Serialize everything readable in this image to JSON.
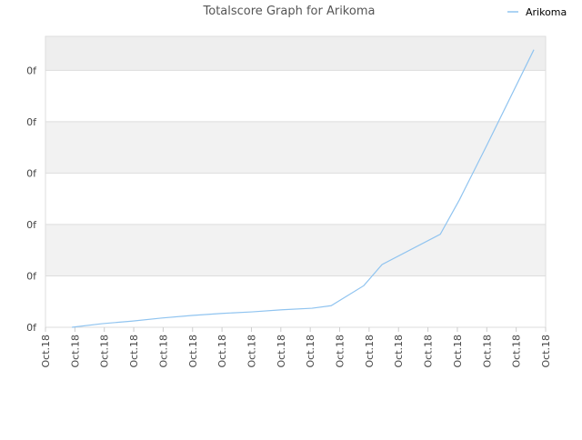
{
  "chart_data": {
    "type": "line",
    "title": "Totalscore Graph for Arikoma",
    "x": [
      0.9,
      1.92,
      2.94,
      3.96,
      4.98,
      6,
      7.02,
      8.04,
      9.06,
      9.71,
      10.82,
      11.44,
      13.42,
      14.07,
      15,
      16.6
    ],
    "series": [
      {
        "name": "Arikoma",
        "color": "#90c4f0",
        "values": [
          0,
          0.07,
          0.12,
          0.18,
          0.23,
          0.27,
          0.3,
          0.34,
          0.37,
          0.42,
          0.81,
          1.22,
          1.81,
          2.48,
          3.54,
          5.4
        ]
      }
    ],
    "xlim": [
      0,
      17
    ],
    "xticks": [
      {
        "value": 0,
        "label": "Oct.18"
      },
      {
        "value": 1,
        "label": "Oct.18"
      },
      {
        "value": 2,
        "label": "Oct.18"
      },
      {
        "value": 3,
        "label": "Oct.18"
      },
      {
        "value": 4,
        "label": "Oct.18"
      },
      {
        "value": 5,
        "label": "Oct.18"
      },
      {
        "value": 6,
        "label": "Oct.18"
      },
      {
        "value": 7,
        "label": "Oct.18"
      },
      {
        "value": 8,
        "label": "Oct.18"
      },
      {
        "value": 9,
        "label": "Oct.18"
      },
      {
        "value": 10,
        "label": "Oct.18"
      },
      {
        "value": 11,
        "label": "Oct.18"
      },
      {
        "value": 12,
        "label": "Oct.18"
      },
      {
        "value": 13,
        "label": "Oct.18"
      },
      {
        "value": 14,
        "label": "Oct.18"
      },
      {
        "value": 15,
        "label": "Oct.18"
      },
      {
        "value": 16,
        "label": "Oct.18"
      },
      {
        "value": 17,
        "label": "Oct.18"
      }
    ],
    "ylim": [
      0,
      5.66
    ],
    "yticks": [
      {
        "value": 0,
        "label": "0f"
      },
      {
        "value": 1,
        "label": "0f"
      },
      {
        "value": 2,
        "label": "0f"
      },
      {
        "value": 3,
        "label": "0f"
      },
      {
        "value": 4,
        "label": "0f"
      },
      {
        "value": 5,
        "label": "0f"
      }
    ],
    "grid": true,
    "legend": "top-right"
  }
}
